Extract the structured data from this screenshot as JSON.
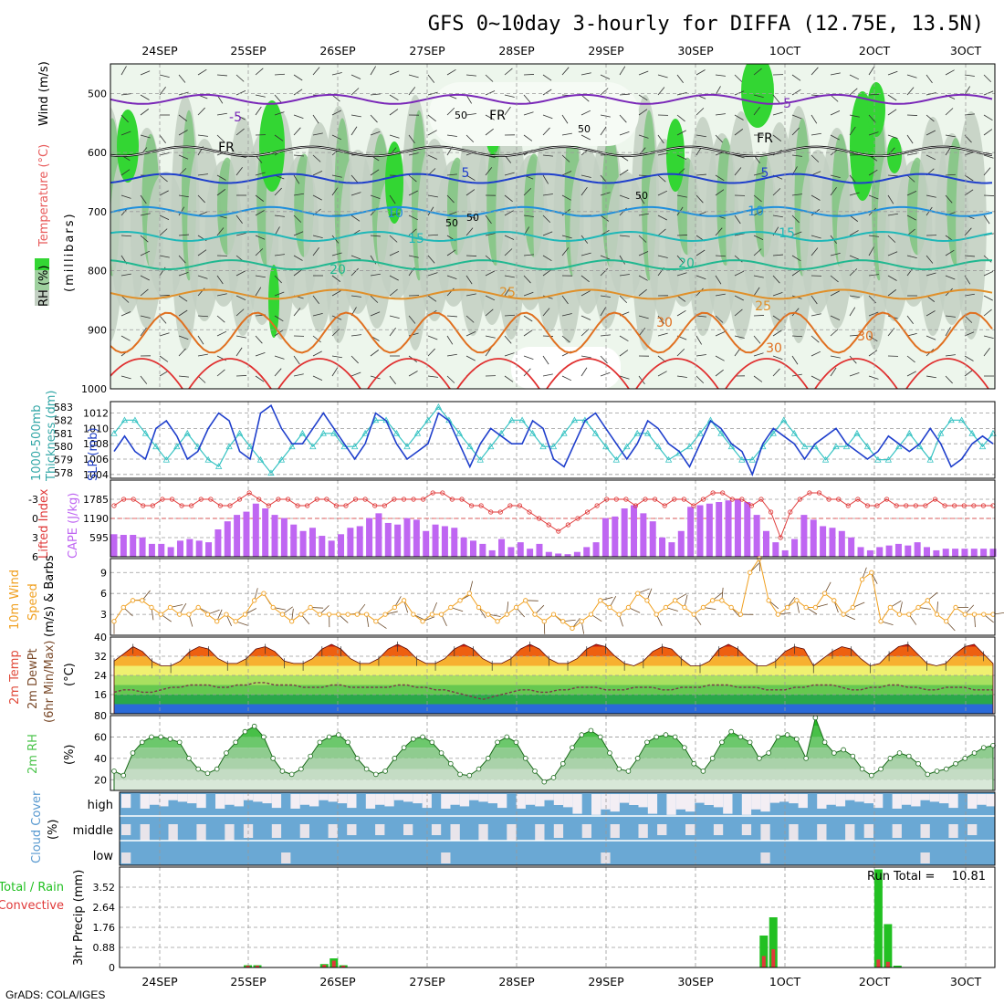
{
  "title": "GFS 0~10day 3-hourly for DIFFA (12.75E, 13.5N)",
  "footer": "GrADS: COLA/IGES",
  "dates_top": [
    "24SEP",
    "25SEP",
    "26SEP",
    "27SEP",
    "28SEP",
    "29SEP",
    "30SEP",
    "1OCT",
    "2OCT",
    "3OCT"
  ],
  "dates_bottom": [
    "24SEP",
    "25SEP",
    "26SEP",
    "27SEP",
    "28SEP",
    "29SEP",
    "30SEP",
    "1OCT",
    "2OCT",
    "3OCT"
  ],
  "colors": {
    "rh_light": "#e6f3e6",
    "rh_mid": "#c2cfc2",
    "rh_dark": "#7fc47f",
    "rh_green": "#33d633",
    "slp": "#1f3fcc",
    "thickness": "#33c2c2",
    "lifted_index": "#e03a3a",
    "cape": "#bf66f2",
    "wind": "#f0a020",
    "barb": "#6b4a2a",
    "rh2m": "#4cc44c",
    "cloud": "#6aa8d4",
    "cloud_gap": "#f3eef4",
    "precip_total": "#22c022",
    "precip_conv": "#e03a3a"
  },
  "chart_data": [
    {
      "type": "contour",
      "panel": "upper_air",
      "ylabel": "(millibars)",
      "ylabel_parts": [
        "RH (%)",
        "Temperature (°C)",
        "Wind (m/s)"
      ],
      "y_ticks": [
        500,
        600,
        700,
        800,
        900,
        1000
      ],
      "ylim": [
        450,
        1000
      ],
      "rh_labels": [
        "50",
        "50",
        "50",
        "50",
        "50"
      ],
      "isotherms": [
        {
          "label": "-5",
          "level": 510,
          "color": "#7a28b8"
        },
        {
          "label": "FR",
          "level": 598,
          "color": "#000000"
        },
        {
          "label": "5",
          "level": 644,
          "color": "#1f3fcc"
        },
        {
          "label": "10",
          "level": 700,
          "color": "#1f8fdc"
        },
        {
          "label": "15",
          "level": 742,
          "color": "#1fb8b8"
        },
        {
          "label": "20",
          "level": 790,
          "color": "#20b890"
        },
        {
          "label": "25",
          "level": 840,
          "color": "#e0902a"
        },
        {
          "label": "30",
          "level": 905,
          "color": "#e07020"
        }
      ],
      "isotherm_labels": [
        "-5",
        "-5",
        "FR",
        "FR",
        "FR",
        "5",
        "5",
        "10",
        "10",
        "15",
        "15",
        "20",
        "20",
        "25",
        "25",
        "30",
        "30",
        "30"
      ]
    },
    {
      "type": "line",
      "panel": "slp_thickness",
      "ylabel_left": "Thickness (dm)",
      "ylabel_left_extra": "1000-500mb",
      "ylabel_right": "SLP (mb)",
      "left_ticks": [
        578,
        579,
        580,
        581,
        582,
        583
      ],
      "right_ticks": [
        1004,
        1006,
        1008,
        1010,
        1012
      ],
      "slp": [
        1007,
        1009,
        1007,
        1006,
        1010,
        1011,
        1009,
        1006,
        1007,
        1010,
        1012,
        1011,
        1007,
        1006,
        1012,
        1013,
        1010,
        1008,
        1008,
        1010,
        1012,
        1010,
        1008,
        1006,
        1008,
        1012,
        1011,
        1008,
        1006,
        1007,
        1008,
        1012,
        1011,
        1008,
        1005,
        1008,
        1010,
        1009,
        1008,
        1008,
        1011,
        1010,
        1006,
        1005,
        1008,
        1011,
        1012,
        1010,
        1008,
        1006,
        1008,
        1011,
        1010,
        1008,
        1007,
        1005,
        1008,
        1011,
        1010,
        1008,
        1007,
        1004,
        1008,
        1010,
        1009,
        1008,
        1006,
        1008,
        1009,
        1010,
        1008,
        1007,
        1006,
        1007,
        1009,
        1008,
        1007,
        1008,
        1010,
        1008,
        1005,
        1006,
        1008,
        1009,
        1008
      ],
      "thickness": [
        581,
        582,
        582,
        581,
        580,
        579,
        580,
        581,
        580,
        579,
        578.5,
        580,
        581,
        580,
        579,
        578,
        579,
        580,
        581,
        580,
        581,
        581,
        580,
        580,
        581,
        582,
        582,
        581,
        580,
        581,
        582,
        583,
        582,
        581,
        580,
        579,
        580,
        581,
        582,
        582,
        581,
        580,
        580,
        581,
        582,
        582,
        581,
        580,
        579,
        580,
        581,
        581,
        580,
        579,
        579.5,
        580,
        581,
        582,
        581,
        580,
        579,
        579,
        580,
        581,
        582,
        581,
        580,
        580,
        579,
        580,
        580,
        581,
        580,
        579,
        579,
        580,
        581,
        580,
        579,
        581,
        582,
        582,
        581,
        580,
        581
      ]
    },
    {
      "type": "bar+line",
      "panel": "cape_li",
      "ylabel_left": "Lifted Index",
      "ylabel_right": "CAPE (J/kg)",
      "left_ticks": [
        -3,
        0,
        3,
        6
      ],
      "right_ticks": [
        595,
        1190,
        1785
      ],
      "cape": [
        700,
        680,
        680,
        600,
        400,
        400,
        300,
        500,
        550,
        500,
        450,
        850,
        1100,
        1300,
        1400,
        1650,
        1500,
        1300,
        1200,
        1000,
        800,
        900,
        650,
        500,
        700,
        900,
        950,
        1200,
        1350,
        1050,
        1000,
        1200,
        1150,
        800,
        1000,
        950,
        900,
        600,
        500,
        400,
        200,
        550,
        300,
        450,
        250,
        400,
        150,
        100,
        80,
        150,
        300,
        450,
        1200,
        1250,
        1500,
        1600,
        1350,
        1100,
        600,
        450,
        800,
        1550,
        1600,
        1650,
        1700,
        1750,
        1800,
        1700,
        1300,
        800,
        450,
        200,
        550,
        1300,
        1150,
        950,
        900,
        800,
        600,
        300,
        200,
        300,
        350,
        400,
        350,
        450,
        300,
        200,
        250,
        250,
        250,
        250,
        250,
        250
      ],
      "lifted_index": [
        -2,
        -3,
        -3,
        -2,
        -2,
        -3,
        -3,
        -2,
        -2,
        -3,
        -3,
        -2,
        -2,
        -3,
        -4,
        -3,
        -2,
        -3,
        -3,
        -2,
        -2,
        -3,
        -3,
        -2,
        -2,
        -3,
        -3,
        -2,
        -2,
        -3,
        -3,
        -3,
        -3,
        -4,
        -4,
        -3,
        -3,
        -2,
        -2,
        -1,
        -1,
        -2,
        -2,
        -1,
        0,
        1,
        2,
        1,
        0,
        -1,
        -2,
        -3,
        -3,
        -3,
        -2,
        -3,
        -3,
        -2,
        -3,
        -3,
        -2,
        -3,
        -4,
        -4,
        -3,
        -3,
        -2,
        -3,
        -1,
        3,
        -1,
        -3,
        -4,
        -4,
        -3,
        -3,
        -2,
        -3,
        -2,
        -2,
        -3,
        -2,
        -2,
        -2,
        -2,
        -3,
        -2,
        -2,
        -2,
        -2,
        -2,
        -2
      ]
    },
    {
      "type": "line",
      "panel": "wind10m",
      "ylabel": "10m Wind Speed (m/s) & Barbs",
      "ylabel_parts": [
        "10m Wind",
        "Speed",
        "(m/s) & Barbs"
      ],
      "y_ticks": [
        3,
        6,
        9
      ],
      "ylim": [
        0,
        11
      ],
      "speed": [
        2,
        4,
        5,
        5,
        4,
        3,
        4,
        3,
        3,
        4,
        3,
        2,
        3,
        2,
        3,
        5,
        6,
        4,
        3,
        2,
        3,
        4,
        3,
        3,
        3,
        3,
        3,
        3,
        2,
        3,
        4,
        5,
        3,
        2,
        3,
        3,
        4,
        5,
        6,
        4,
        3,
        2,
        3,
        4,
        5,
        3,
        2,
        3,
        2,
        1,
        2,
        3,
        5,
        4,
        3,
        4,
        6,
        5,
        3,
        4,
        5,
        4,
        3,
        4,
        5,
        5,
        4,
        3,
        9,
        11,
        5,
        3,
        4,
        5,
        4,
        4,
        6,
        5,
        3,
        4,
        8,
        9,
        2,
        4,
        3,
        3,
        4,
        5,
        3,
        2,
        4,
        3,
        3,
        3,
        3
      ]
    },
    {
      "type": "area",
      "panel": "temp2m",
      "ylabel_parts": [
        "2m Temp",
        "2m DewPt",
        "(6hr Min/Max)"
      ],
      "unit": "(°C)",
      "y_ticks": [
        16,
        24,
        32,
        40
      ],
      "ylim": [
        8,
        40
      ],
      "temp": [
        30,
        33,
        36,
        34,
        30,
        28,
        28,
        30,
        34,
        36,
        35,
        31,
        29,
        29,
        31,
        35,
        36,
        34,
        30,
        29,
        29,
        31,
        35,
        37,
        35,
        31,
        29,
        29,
        31,
        35,
        37,
        35,
        31,
        29,
        29,
        31,
        35,
        37,
        35,
        31,
        29,
        29,
        31,
        35,
        37,
        35,
        31,
        29,
        29,
        31,
        35,
        37,
        36,
        32,
        29,
        28,
        30,
        34,
        36,
        35,
        31,
        28,
        28,
        30,
        35,
        37,
        35,
        31,
        28,
        28,
        30,
        34,
        36,
        35,
        28,
        31,
        34,
        36,
        35,
        31,
        28,
        29,
        33,
        36,
        37,
        33,
        29,
        28,
        29,
        33,
        36,
        37,
        33,
        29
      ],
      "dewpoint": [
        17,
        18,
        18,
        17,
        17,
        18,
        19,
        19,
        20,
        20,
        20,
        19,
        19,
        20,
        20,
        21,
        21,
        20,
        20,
        20,
        19,
        19,
        19,
        20,
        20,
        19,
        19,
        19,
        19,
        19,
        20,
        20,
        19,
        19,
        18,
        18,
        17,
        16,
        15,
        14,
        15,
        16,
        17,
        18,
        18,
        17,
        17,
        18,
        18,
        19,
        19,
        19,
        18,
        18,
        18,
        19,
        19,
        19,
        18,
        18,
        19,
        19,
        19,
        20,
        20,
        20,
        19,
        19,
        19,
        18,
        18,
        18,
        19,
        19,
        20,
        20,
        20,
        19,
        18,
        18,
        19,
        19,
        20,
        20,
        19,
        19,
        18,
        18,
        19,
        19,
        19,
        18,
        18,
        18
      ]
    },
    {
      "type": "area",
      "panel": "rh2m",
      "ylabel": "2m RH",
      "unit": "(%)",
      "y_ticks": [
        20,
        40,
        60,
        80
      ],
      "ylim": [
        10,
        80
      ],
      "rh": [
        28,
        24,
        45,
        55,
        60,
        60,
        58,
        55,
        40,
        30,
        26,
        30,
        45,
        55,
        65,
        70,
        60,
        40,
        28,
        25,
        30,
        42,
        55,
        60,
        62,
        55,
        40,
        30,
        25,
        28,
        40,
        50,
        58,
        60,
        55,
        45,
        35,
        25,
        24,
        30,
        40,
        55,
        60,
        55,
        40,
        28,
        18,
        22,
        35,
        50,
        62,
        66,
        60,
        45,
        30,
        28,
        40,
        55,
        60,
        62,
        60,
        50,
        35,
        28,
        40,
        55,
        65,
        60,
        55,
        40,
        45,
        60,
        62,
        58,
        40,
        78,
        55,
        45,
        48,
        42,
        30,
        24,
        30,
        40,
        45,
        42,
        35,
        25,
        28,
        30,
        35,
        40,
        45,
        50,
        52
      ]
    },
    {
      "type": "heatmap",
      "panel": "cloud",
      "ylabel": "Cloud Cover",
      "unit": "(%)",
      "rows": [
        "high",
        "middle",
        "low"
      ]
    },
    {
      "type": "bar",
      "panel": "precip",
      "ylabel": "3hr Precip (mm)",
      "ylabel_legend": [
        "Total / Rain",
        "Convective"
      ],
      "y_ticks": [
        0,
        0.88,
        1.76,
        2.64,
        3.52
      ],
      "ylim": [
        0,
        4.4
      ],
      "run_total_label": "Run Total = ",
      "run_total": "10.81",
      "total": [
        0,
        0,
        0,
        0,
        0,
        0,
        0,
        0,
        0,
        0,
        0,
        0,
        0,
        0,
        0.1,
        0.1,
        0,
        0,
        0,
        0,
        0,
        0,
        0.15,
        0.4,
        0.1,
        0,
        0,
        0,
        0,
        0,
        0,
        0,
        0,
        0,
        0,
        0,
        0,
        0,
        0,
        0,
        0,
        0,
        0,
        0,
        0,
        0,
        0,
        0,
        0,
        0,
        0,
        0,
        0,
        0,
        0,
        0,
        0,
        0,
        0,
        0,
        0,
        0,
        0,
        0,
        0,
        0,
        0,
        0,
        1.4,
        2.2,
        0,
        0,
        0,
        0,
        0,
        0,
        0,
        0,
        0,
        0,
        4.3,
        1.9,
        0.08,
        0,
        0,
        0,
        0,
        0,
        0,
        0,
        0,
        0,
        0
      ],
      "convective": [
        0,
        0,
        0,
        0,
        0,
        0,
        0,
        0,
        0,
        0,
        0,
        0,
        0,
        0,
        0.08,
        0.08,
        0,
        0,
        0,
        0,
        0,
        0,
        0.12,
        0.3,
        0.08,
        0,
        0,
        0,
        0,
        0,
        0,
        0,
        0,
        0,
        0,
        0,
        0,
        0,
        0,
        0,
        0,
        0,
        0,
        0,
        0,
        0,
        0,
        0,
        0,
        0,
        0,
        0,
        0,
        0,
        0,
        0,
        0,
        0,
        0,
        0,
        0,
        0,
        0,
        0,
        0,
        0,
        0,
        0,
        0.5,
        0.8,
        0,
        0,
        0,
        0,
        0,
        0,
        0,
        0,
        0,
        0,
        0.35,
        0.25,
        0,
        0,
        0,
        0,
        0,
        0,
        0,
        0,
        0,
        0,
        0
      ]
    }
  ]
}
